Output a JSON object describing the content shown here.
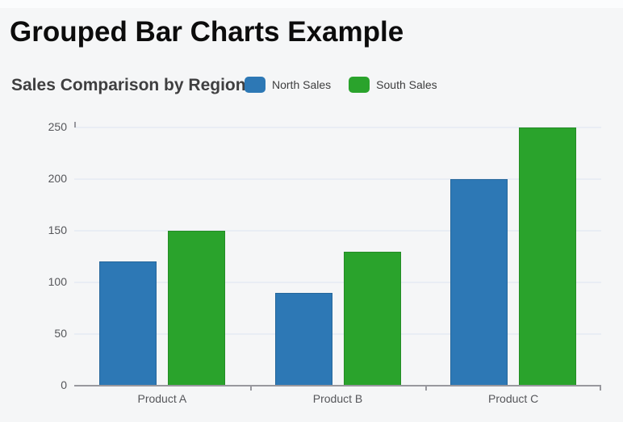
{
  "page": {
    "title": "Grouped Bar Charts Example"
  },
  "chart_data": {
    "type": "bar",
    "title": "Sales Comparison by Region",
    "categories": [
      "Product A",
      "Product B",
      "Product C"
    ],
    "series": [
      {
        "name": "North Sales",
        "color": "#2d78b5",
        "values": [
          120,
          90,
          200
        ]
      },
      {
        "name": "South Sales",
        "color": "#2aa32c",
        "values": [
          150,
          130,
          250
        ]
      }
    ],
    "ylim": [
      0,
      250
    ],
    "yticks": [
      0,
      50,
      100,
      150,
      200,
      250
    ],
    "grid": true,
    "legend_position": "top"
  },
  "theme": {
    "background": "#f5f6f7",
    "grid_color": "#e9edf4",
    "axis_color": "#98989e",
    "tick_label_color": "#55565a"
  }
}
